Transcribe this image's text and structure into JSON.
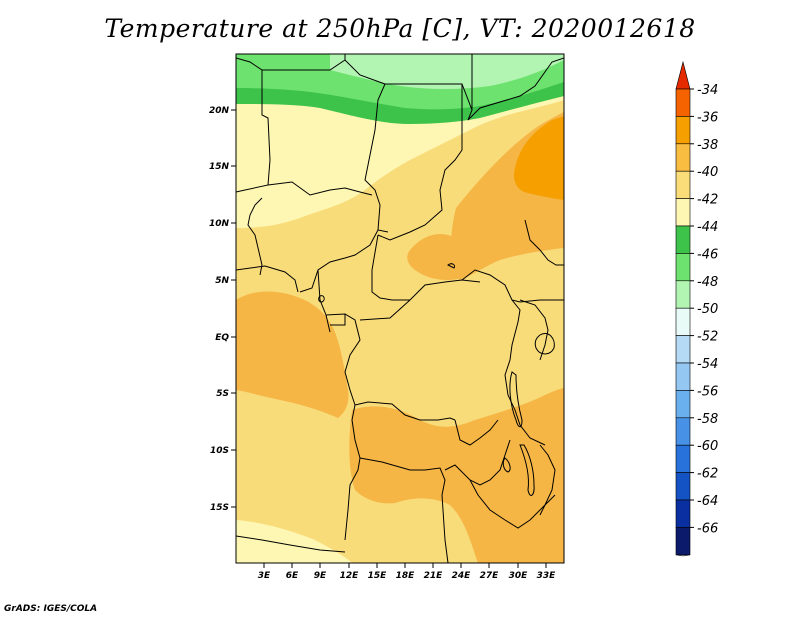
{
  "title": "Temperature at 250hPa [C], VT: 2020012618",
  "credit": "GrADS: IGES/COLA",
  "map": {
    "lat_labels": [
      "20N",
      "15N",
      "10N",
      "5N",
      "EQ",
      "5S",
      "10S",
      "15S"
    ],
    "lon_labels": [
      "3E",
      "6E",
      "9E",
      "12E",
      "15E",
      "18E",
      "21E",
      "24E",
      "27E",
      "30E",
      "33E"
    ]
  },
  "colorbar": {
    "labels": [
      "-34",
      "-36",
      "-38",
      "-40",
      "-42",
      "-44",
      "-46",
      "-48",
      "-50",
      "-52",
      "-54",
      "-56",
      "-58",
      "-60",
      "-62",
      "-64",
      "-66"
    ],
    "colors": [
      "#e62a00",
      "#f56200",
      "#f5a000",
      "#f9bd42",
      "#fadd78",
      "#fef7b4",
      "#3ec34a",
      "#6de26e",
      "#b2f4b2",
      "#e9fbf7",
      "#b4daf5",
      "#94c8f2",
      "#6ab0ee",
      "#4792e7",
      "#2872dc",
      "#1453c4",
      "#0a2fa1",
      "#0b1a6b",
      "#d9dcf3"
    ]
  }
}
